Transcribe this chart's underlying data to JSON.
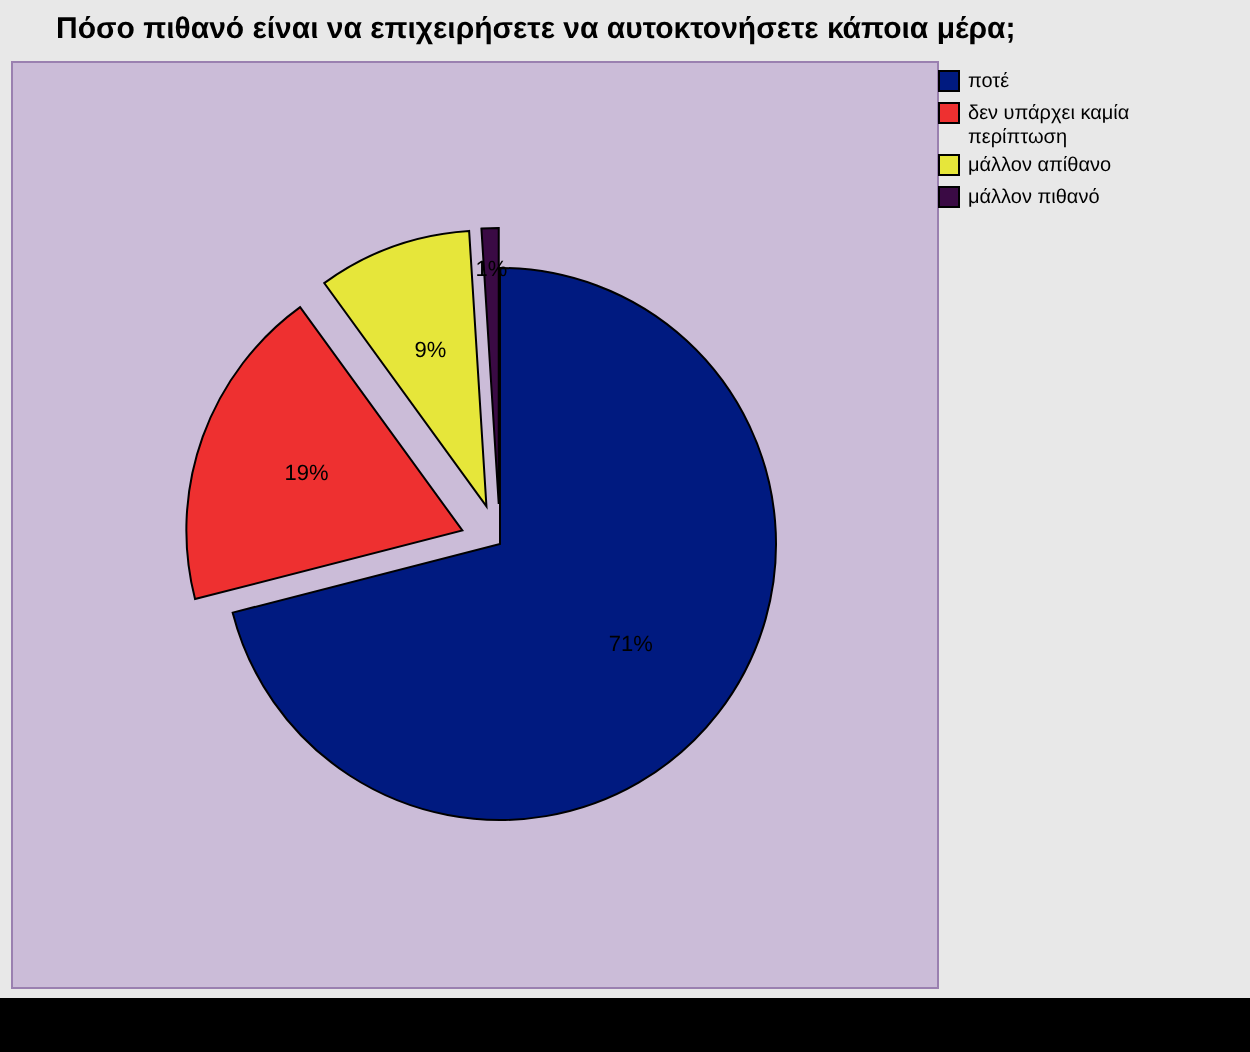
{
  "chart_data": {
    "type": "pie",
    "title": "Πόσο πιθανό είναι να επιχειρήσετε να αυτοκτονήσετε κάποια μέρα;",
    "categories": [
      "ποτέ",
      "δεν υπάρχει καμία περίπτωση",
      "μάλλον απίθανο",
      "μάλλον πιθανό"
    ],
    "values": [
      71,
      19,
      9,
      1
    ],
    "colors": [
      "#001a80",
      "#ee3030",
      "#e6e63a",
      "#3a0a44"
    ],
    "value_labels": [
      "71%",
      "19%",
      "9%",
      "1%"
    ],
    "legend": "top right"
  }
}
